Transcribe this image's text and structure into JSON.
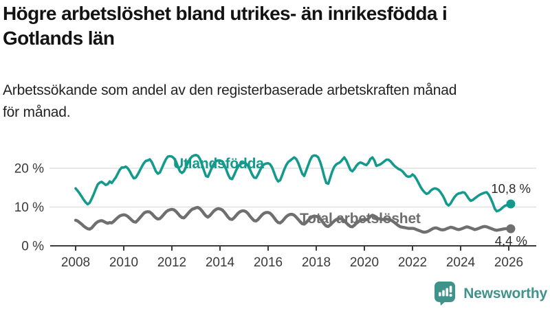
{
  "header": {
    "title_lines": [
      "Högre arbetslöshet bland utrikes- än inrikesfödda i",
      "Gotlands län"
    ],
    "subtitle_lines": [
      "Arbetssökande som andel av den registerbaserade arbetskraften månad",
      "för månad."
    ]
  },
  "chart_data": {
    "type": "line",
    "title": "Högre arbetslöshet bland utrikes- än inrikesfödda i Gotlands län",
    "subtitle": "Arbetssökande som andel av den registerbaserade arbetskraften månad för månad.",
    "x_start": 2008,
    "x_interval": "monthly",
    "x_axis": {
      "ticks": [
        2008,
        2010,
        2012,
        2014,
        2016,
        2018,
        2020,
        2022,
        2024,
        2026
      ]
    },
    "y_axis": {
      "range": [
        0,
        25
      ],
      "ticks": [
        {
          "value": 0,
          "label": "0 %"
        },
        {
          "value": 10,
          "label": "10 %"
        },
        {
          "value": 20,
          "label": "20 %"
        }
      ],
      "grid": true
    },
    "legend_position": "inline-on-lines",
    "series": [
      {
        "name": "Utlandsfödda",
        "color": "#149a8d",
        "end_label": "10,8 %",
        "end_value": 10.8,
        "values": [
          14.8,
          14.2,
          13.5,
          12.7,
          11.9,
          11.2,
          10.7,
          11.1,
          12.1,
          13.3,
          14.6,
          15.8,
          16.3,
          16.5,
          16.1,
          15.7,
          15.9,
          16.6,
          16.2,
          16.9,
          17.6,
          18.6,
          19.6,
          20.2,
          20.2,
          20.4,
          20.0,
          19.2,
          18.2,
          17.4,
          17.6,
          18.4,
          19.4,
          20.4,
          21.3,
          21.9,
          22.0,
          22.3,
          21.6,
          20.4,
          19.2,
          18.6,
          18.9,
          20.0,
          21.2,
          22.3,
          23.0,
          23.1,
          23.0,
          22.6,
          21.8,
          20.4,
          19.2,
          18.8,
          19.2,
          20.3,
          21.4,
          22.4,
          23.0,
          23.3,
          23.4,
          23.2,
          22.4,
          21.0,
          19.4,
          18.0,
          17.8,
          19.0,
          20.2,
          21.2,
          21.8,
          22.0,
          22.0,
          21.8,
          21.0,
          19.8,
          18.4,
          17.4,
          17.2,
          18.2,
          19.4,
          20.4,
          21.0,
          21.3,
          21.4,
          21.2,
          20.6,
          19.6,
          18.4,
          17.6,
          17.5,
          18.4,
          19.5,
          20.5,
          21.0,
          21.2,
          21.3,
          21.0,
          20.2,
          18.8,
          17.4,
          16.6,
          16.9,
          18.2,
          19.6,
          20.8,
          21.6,
          22.0,
          22.4,
          22.8,
          22.4,
          21.4,
          20.0,
          18.6,
          18.0,
          19.4,
          20.8,
          22.2,
          23.1,
          23.3,
          23.2,
          22.8,
          21.6,
          19.8,
          17.8,
          16.2,
          16.0,
          17.6,
          19.2,
          20.4,
          21.0,
          21.3,
          21.6,
          22.2,
          22.8,
          22.0,
          20.8,
          19.6,
          19.2,
          19.8,
          20.6,
          21.2,
          21.5,
          21.3,
          21.0,
          20.8,
          21.4,
          22.4,
          22.8,
          22.0,
          20.6,
          20.8,
          21.0,
          21.4,
          21.8,
          22.2,
          22.2,
          21.8,
          21.2,
          20.6,
          20.2,
          19.8,
          19.6,
          19.2,
          18.6,
          18.0,
          17.8,
          17.9,
          18.4,
          18.0,
          17.2,
          16.2,
          15.2,
          14.4,
          13.8,
          13.4,
          13.6,
          14.2,
          14.6,
          14.8,
          14.7,
          14.4,
          13.8,
          13.0,
          12.0,
          10.8,
          10.4,
          10.9,
          11.8,
          12.6,
          13.2,
          13.5,
          13.6,
          13.8,
          13.7,
          13.0,
          12.2,
          11.6,
          11.8,
          12.2,
          12.6,
          13.0,
          13.3,
          13.5,
          13.7,
          13.8,
          13.2,
          12.2,
          11.0,
          9.6,
          8.9,
          9.1,
          9.4,
          9.9,
          10.3,
          10.5,
          10.6,
          10.8
        ]
      },
      {
        "name": "Total arbetslöshet",
        "color": "#6f6f6f",
        "end_label": "4,4 %",
        "end_value": 4.4,
        "values": [
          6.6,
          6.4,
          6.0,
          5.6,
          5.1,
          4.7,
          4.4,
          4.3,
          4.6,
          5.2,
          5.8,
          6.2,
          6.4,
          6.5,
          6.3,
          6.0,
          5.8,
          6.0,
          5.9,
          6.3,
          6.8,
          7.3,
          7.7,
          7.9,
          8.0,
          7.9,
          7.6,
          7.1,
          6.6,
          6.2,
          6.1,
          6.6,
          7.2,
          7.8,
          8.4,
          8.7,
          8.8,
          8.7,
          8.3,
          7.7,
          7.2,
          6.9,
          7.0,
          7.5,
          8.1,
          8.7,
          9.1,
          9.3,
          9.4,
          9.3,
          8.9,
          8.3,
          7.7,
          7.3,
          7.2,
          7.7,
          8.3,
          8.9,
          9.4,
          9.6,
          9.8,
          9.9,
          9.6,
          9.0,
          8.3,
          7.7,
          7.4,
          7.8,
          8.4,
          9.0,
          9.4,
          9.6,
          9.5,
          9.3,
          8.8,
          8.1,
          7.4,
          6.9,
          6.8,
          7.2,
          7.8,
          8.4,
          8.8,
          9.0,
          9.0,
          8.8,
          8.3,
          7.6,
          7.0,
          6.5,
          6.4,
          6.8,
          7.4,
          8.0,
          8.4,
          8.6,
          8.6,
          8.4,
          7.9,
          7.2,
          6.5,
          6.0,
          5.9,
          6.3,
          6.9,
          7.5,
          7.9,
          8.1,
          8.1,
          7.9,
          7.4,
          6.8,
          6.2,
          5.7,
          5.6,
          6.0,
          6.6,
          7.1,
          7.5,
          7.7,
          7.6,
          7.4,
          7.0,
          6.3,
          5.6,
          5.1,
          5.0,
          5.4,
          5.9,
          6.4,
          6.8,
          7.0,
          7.0,
          6.9,
          6.5,
          5.9,
          5.4,
          5.0,
          4.9,
          5.3,
          5.8,
          6.2,
          6.6,
          6.7,
          6.8,
          6.7,
          7.0,
          7.6,
          7.9,
          7.7,
          7.2,
          7.0,
          6.9,
          6.8,
          6.8,
          6.9,
          6.8,
          6.7,
          6.4,
          6.0,
          5.6,
          5.2,
          4.9,
          4.8,
          4.7,
          4.6,
          4.5,
          4.5,
          4.5,
          4.4,
          4.2,
          4.0,
          3.8,
          3.6,
          3.5,
          3.6,
          3.8,
          4.1,
          4.4,
          4.6,
          4.6,
          4.4,
          4.2,
          4.1,
          4.2,
          4.4,
          4.6,
          4.8,
          4.7,
          4.5,
          4.3,
          4.2,
          4.3,
          4.5,
          4.7,
          4.9,
          4.8,
          4.6,
          4.4,
          4.2,
          4.3,
          4.5,
          4.7,
          4.9,
          5.0,
          4.9,
          4.7,
          4.5,
          4.3,
          4.1,
          4.0,
          4.1,
          4.2,
          4.3,
          4.4,
          4.4,
          4.4,
          4.4
        ]
      }
    ],
    "colors": {
      "accent_teal": "#149a8d",
      "series_gray": "#6f6f6f",
      "axis": "#3a3a3a",
      "grid": "#e0e0e0"
    }
  },
  "footer": {
    "brand": "Newsworthy",
    "brand_color": "#3f938b"
  }
}
